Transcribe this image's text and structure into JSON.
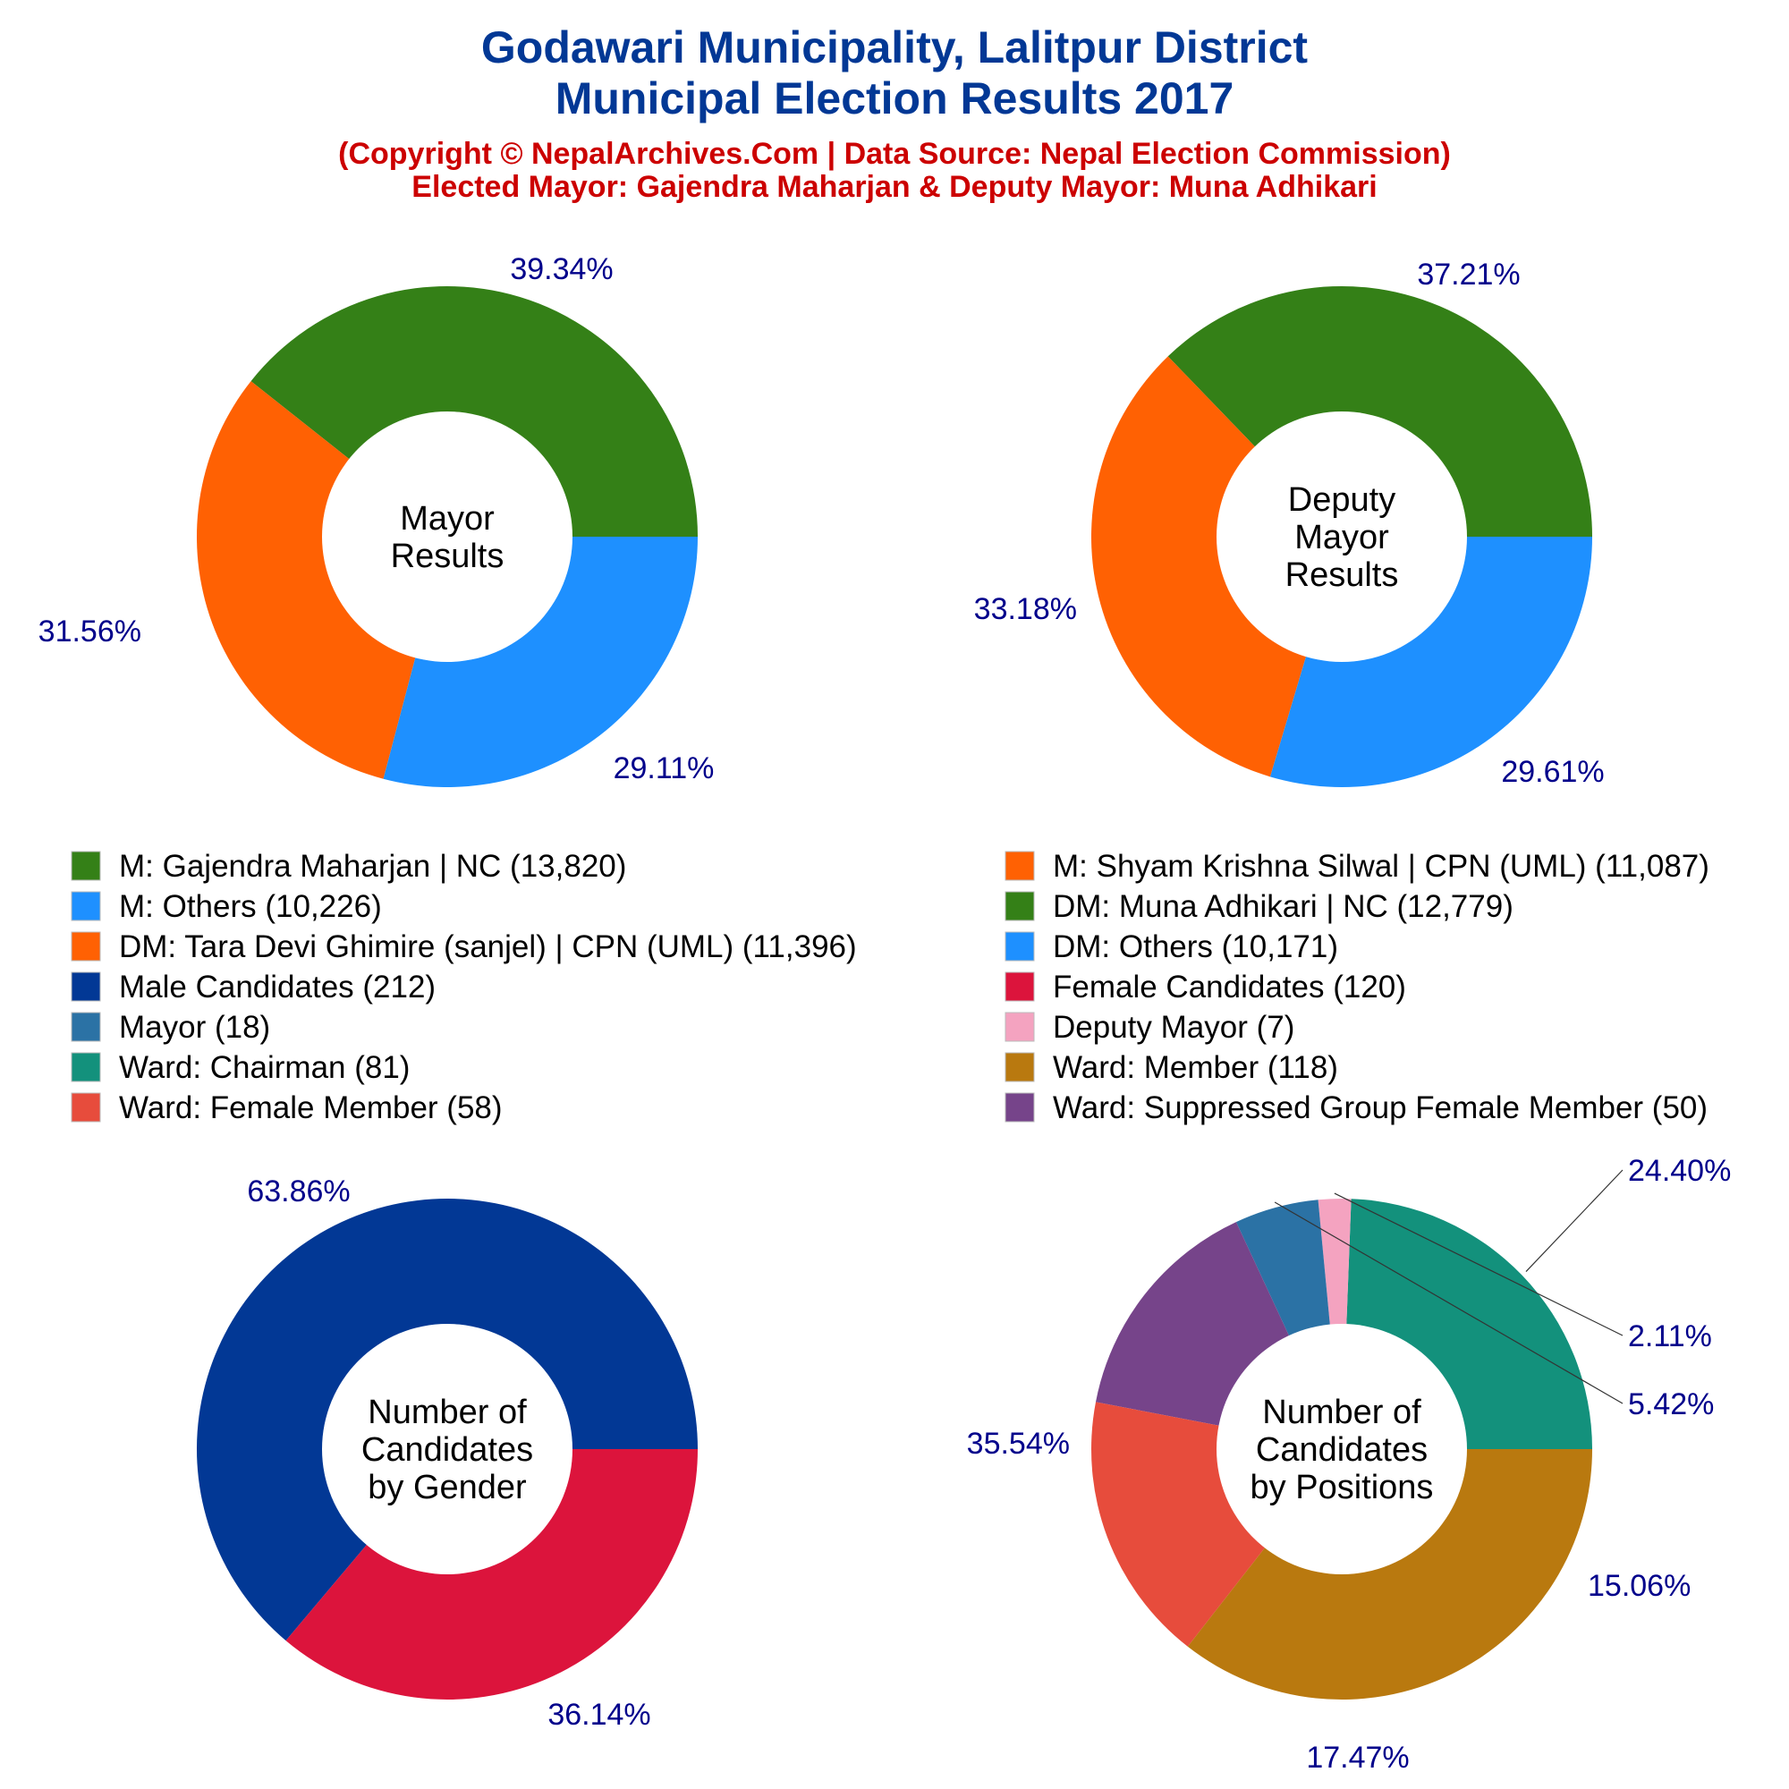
{
  "header": {
    "title_line1": "Godawari Municipality, Lalitpur District",
    "title_line2": "Municipal Election Results 2017",
    "subtitle_line1": "(Copyright © NepalArchives.Com | Data Source: Nepal Election Commission)",
    "subtitle_line2": "Elected Mayor: Gajendra Maharjan & Deputy Mayor: Muna Adhikari"
  },
  "colors": {
    "title": "#023895",
    "subtitle": "#cc0000",
    "percent_labels": "#00008b"
  },
  "legend": {
    "items": [
      {
        "label": "M: Gajendra Maharjan | NC (13,820)",
        "color": "#348017"
      },
      {
        "label": "M: Shyam Krishna Silwal | CPN (UML) (11,087)",
        "color": "#ff6103"
      },
      {
        "label": "M: Others (10,226)",
        "color": "#1e90ff"
      },
      {
        "label": "DM: Muna Adhikari | NC (12,779)",
        "color": "#348017"
      },
      {
        "label": "DM: Tara Devi Ghimire (sanjel) | CPN (UML) (11,396)",
        "color": "#ff6103"
      },
      {
        "label": "DM: Others (10,171)",
        "color": "#1e90ff"
      },
      {
        "label": "Male Candidates (212)",
        "color": "#023895"
      },
      {
        "label": "Female Candidates (120)",
        "color": "#dc143c"
      },
      {
        "label": "Mayor (18)",
        "color": "#2b72a5"
      },
      {
        "label": "Deputy Mayor (7)",
        "color": "#f4a3c0"
      },
      {
        "label": "Ward: Chairman (81)",
        "color": "#13917c"
      },
      {
        "label": "Ward: Member (118)",
        "color": "#b9790f"
      },
      {
        "label": "Ward: Female Member (58)",
        "color": "#e74c3c"
      },
      {
        "label": "Ward: Suppressed Group Female Member (50)",
        "color": "#76448a"
      }
    ]
  },
  "chart_data": [
    {
      "type": "pie",
      "donut": true,
      "center_label": [
        "Mayor",
        "Results"
      ],
      "slices": [
        {
          "name": "M: Gajendra Maharjan | NC",
          "value": 13820,
          "percent_label": "39.34%",
          "color": "#348017"
        },
        {
          "name": "M: Shyam Krishna Silwal | CPN (UML)",
          "value": 11087,
          "percent_label": "31.56%",
          "color": "#ff6103"
        },
        {
          "name": "M: Others",
          "value": 10226,
          "percent_label": "29.11%",
          "color": "#1e90ff"
        }
      ]
    },
    {
      "type": "pie",
      "donut": true,
      "center_label": [
        "Deputy",
        "Mayor",
        "Results"
      ],
      "slices": [
        {
          "name": "DM: Muna Adhikari | NC",
          "value": 12779,
          "percent_label": "37.21%",
          "color": "#348017"
        },
        {
          "name": "DM: Tara Devi Ghimire (sanjel) | CPN (UML)",
          "value": 11396,
          "percent_label": "33.18%",
          "color": "#ff6103"
        },
        {
          "name": "DM: Others",
          "value": 10171,
          "percent_label": "29.61%",
          "color": "#1e90ff"
        }
      ]
    },
    {
      "type": "pie",
      "donut": true,
      "center_label": [
        "Number of",
        "Candidates",
        "by Gender"
      ],
      "slices": [
        {
          "name": "Male Candidates",
          "value": 212,
          "percent_label": "63.86%",
          "color": "#023895"
        },
        {
          "name": "Female Candidates",
          "value": 120,
          "percent_label": "36.14%",
          "color": "#dc143c"
        }
      ]
    },
    {
      "type": "pie",
      "donut": true,
      "center_label": [
        "Number of",
        "Candidates",
        "by Positions"
      ],
      "slices": [
        {
          "name": "Ward: Chairman",
          "value": 81,
          "percent_label": "24.40%",
          "color": "#13917c"
        },
        {
          "name": "Deputy Mayor",
          "value": 7,
          "percent_label": "2.11%",
          "color": "#f4a3c0"
        },
        {
          "name": "Mayor",
          "value": 18,
          "percent_label": "5.42%",
          "color": "#2b72a5"
        },
        {
          "name": "Ward: Suppressed Group Female Member",
          "value": 50,
          "percent_label": "15.06%",
          "color": "#76448a"
        },
        {
          "name": "Ward: Female Member",
          "value": 58,
          "percent_label": "17.47%",
          "color": "#e74c3c"
        },
        {
          "name": "Ward: Member",
          "value": 118,
          "percent_label": "35.54%",
          "color": "#b9790f"
        }
      ]
    }
  ]
}
